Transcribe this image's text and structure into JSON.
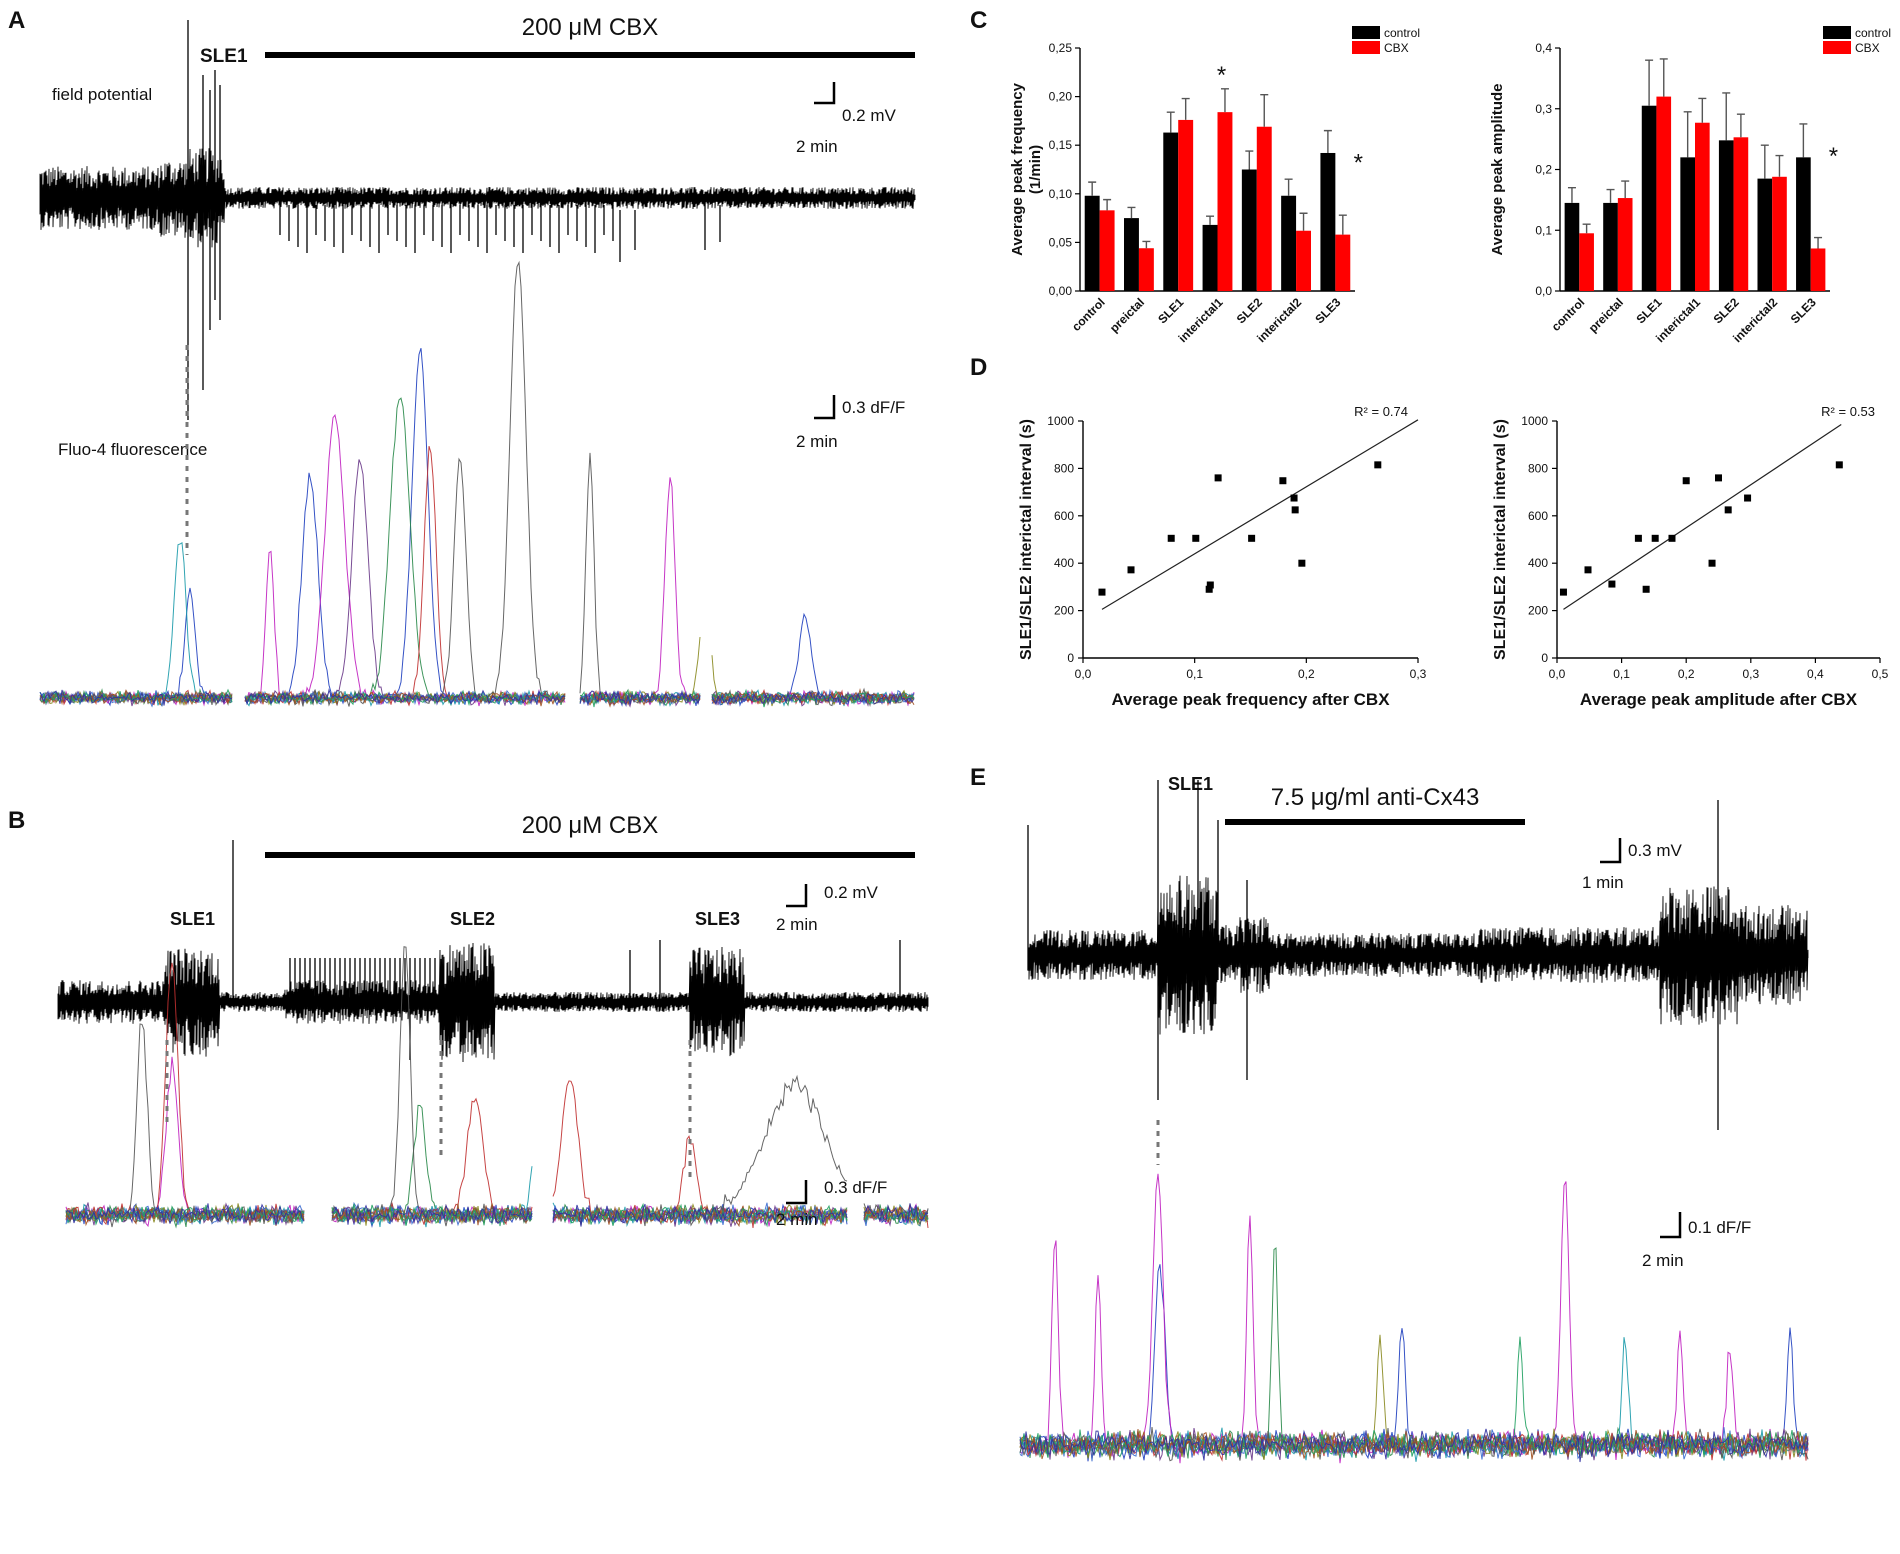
{
  "panels": {
    "A": {
      "label": "A",
      "drug": "200 μM CBX",
      "event": "SLE1",
      "trace1_label": "field potential",
      "trace2_label": "Fluo-4 fluorescence",
      "scale1_y": "0.2 mV",
      "scale1_x": "2 min",
      "scale2_y": "0.3 dF/F",
      "scale2_x": "2 min"
    },
    "B": {
      "label": "B",
      "drug": "200 μM CBX",
      "events": [
        "SLE1",
        "SLE2",
        "SLE3"
      ],
      "scale1_y": "0.2 mV",
      "scale1_x": "2 min",
      "scale2_y": "0.3 dF/F",
      "scale2_x": "2 min"
    },
    "C": {
      "label": "C"
    },
    "D": {
      "label": "D"
    },
    "E": {
      "label": "E",
      "drug": "7.5 μg/ml anti-Cx43",
      "event": "SLE1",
      "scale1_y": "0.3 mV",
      "scale1_x": "1 min",
      "scale2_y": "0.1 dF/F",
      "scale2_x": "2 min"
    }
  },
  "chart_data": [
    {
      "id": "C1",
      "type": "bar",
      "categories": [
        "control",
        "preictal",
        "SLE1",
        "interictal1",
        "SLE2",
        "interictal2",
        "SLE3"
      ],
      "series": [
        {
          "name": "control",
          "color": "#000000",
          "values": [
            0.098,
            0.075,
            0.163,
            0.068,
            0.125,
            0.098,
            0.142
          ],
          "errors": [
            0.014,
            0.011,
            0.021,
            0.009,
            0.019,
            0.017,
            0.023
          ]
        },
        {
          "name": "CBX",
          "color": "#ff0000",
          "values": [
            0.083,
            0.044,
            0.176,
            0.184,
            0.169,
            0.062,
            0.058
          ],
          "errors": [
            0.011,
            0.007,
            0.022,
            0.024,
            0.033,
            0.018,
            0.02
          ]
        }
      ],
      "ylabel": "Average peak frequency\n(1/min)",
      "ylim": [
        0,
        0.25
      ],
      "yticks": [
        "0,00",
        "0,05",
        "0,10",
        "0,15",
        "0,20",
        "0,25"
      ],
      "significance": [
        {
          "category": "interictal1",
          "mark": "*"
        },
        {
          "category": "SLE3",
          "mark": "*"
        }
      ]
    },
    {
      "id": "C2",
      "type": "bar",
      "categories": [
        "control",
        "preictal",
        "SLE1",
        "interictal1",
        "SLE2",
        "interictal2",
        "SLE3"
      ],
      "series": [
        {
          "name": "control",
          "color": "#000000",
          "values": [
            0.145,
            0.145,
            0.305,
            0.22,
            0.248,
            0.185,
            0.22
          ],
          "errors": [
            0.025,
            0.022,
            0.075,
            0.075,
            0.078,
            0.055,
            0.055
          ]
        },
        {
          "name": "CBX",
          "color": "#ff0000",
          "values": [
            0.095,
            0.153,
            0.32,
            0.277,
            0.253,
            0.188,
            0.07
          ],
          "errors": [
            0.015,
            0.028,
            0.062,
            0.04,
            0.038,
            0.035,
            0.018
          ]
        }
      ],
      "ylabel": "Average peak amplitude",
      "ylim": [
        0,
        0.4
      ],
      "yticks": [
        "0,0",
        "0,1",
        "0,2",
        "0,3",
        "0,4"
      ],
      "significance": [
        {
          "category": "SLE3",
          "mark": "*"
        }
      ]
    },
    {
      "id": "D1",
      "type": "scatter",
      "x": [
        0.017,
        0.043,
        0.079,
        0.101,
        0.113,
        0.114,
        0.121,
        0.151,
        0.179,
        0.189,
        0.19,
        0.196,
        0.264
      ],
      "y": [
        278,
        372,
        505,
        505,
        290,
        308,
        760,
        505,
        748,
        675,
        625,
        400,
        815
      ],
      "fit": {
        "x": [
          0.017,
          0.3
        ],
        "y": [
          205,
          1005
        ]
      },
      "annotation": "R² = 0.74",
      "xlabel": "Average peak frequency after CBX",
      "ylabel": "SLE1/SLE2 interictal interval (s)",
      "xlim": [
        0,
        0.3
      ],
      "ylim": [
        0,
        1000
      ],
      "xticks": [
        "0,0",
        "0,1",
        "0,2",
        "0,3"
      ],
      "yticks": [
        "0",
        "200",
        "400",
        "600",
        "800",
        "1000"
      ]
    },
    {
      "id": "D2",
      "type": "scatter",
      "x": [
        0.01,
        0.048,
        0.085,
        0.126,
        0.138,
        0.152,
        0.178,
        0.2,
        0.24,
        0.25,
        0.265,
        0.295,
        0.437
      ],
      "y": [
        278,
        372,
        312,
        505,
        290,
        505,
        505,
        748,
        400,
        760,
        625,
        675,
        815
      ],
      "fit": {
        "x": [
          0.01,
          0.44
        ],
        "y": [
          205,
          985
        ]
      },
      "annotation": "R² = 0.53",
      "xlabel": "Average peak amplitude after CBX",
      "ylabel": "SLE1/SLE2 interictal interval (s)",
      "xlim": [
        0,
        0.5
      ],
      "ylim": [
        0,
        1000
      ],
      "xticks": [
        "0,0",
        "0,1",
        "0,2",
        "0,3",
        "0,4",
        "0,5"
      ],
      "yticks": [
        "0",
        "200",
        "400",
        "600",
        "800",
        "1000"
      ]
    }
  ]
}
